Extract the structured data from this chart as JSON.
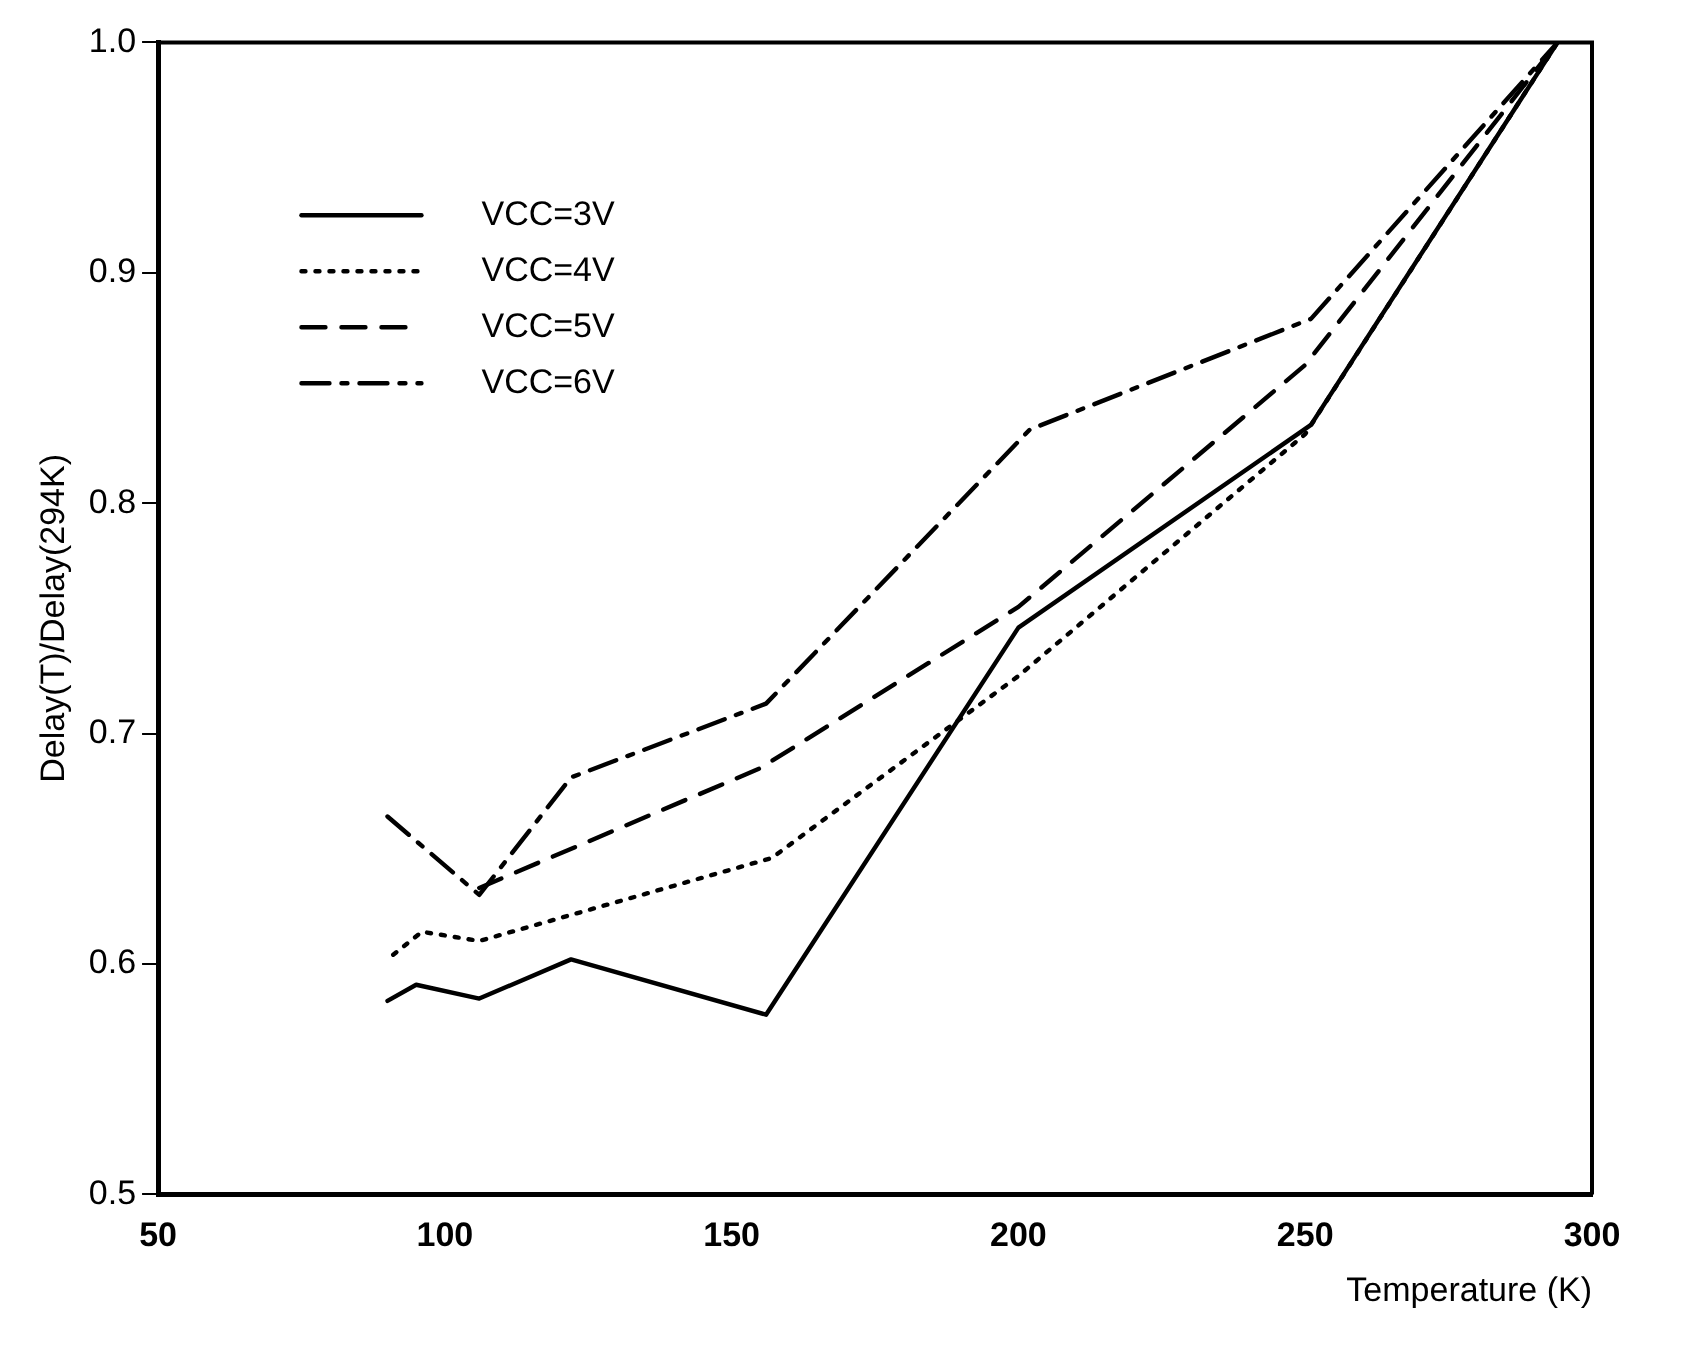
{
  "chart_data": {
    "type": "line",
    "xlabel": "Temperature (K)",
    "ylabel": "Delay(T)/Delay(294K)",
    "xlim": [
      50,
      300
    ],
    "xticks": [
      50,
      100,
      150,
      200,
      250,
      300
    ],
    "ylim": [
      0.5,
      1.0
    ],
    "yticks": [
      {
        "value": 0.5,
        "label": "0.5"
      },
      {
        "value": 0.6,
        "label": "0.6"
      },
      {
        "value": 0.7,
        "label": "0.7"
      },
      {
        "value": 0.8,
        "label": "0.8"
      },
      {
        "value": 0.9,
        "label": "0.9"
      },
      {
        "value": 1.0,
        "label": "1.0"
      }
    ],
    "grid": false,
    "legend": "top left",
    "marker": "none",
    "series": [
      {
        "name": "VCC=3V",
        "color": "#000000",
        "line_style": "solid",
        "x": [
          90,
          95,
          106,
          122,
          156,
          200,
          251,
          294
        ],
        "values": [
          0.584,
          0.591,
          0.585,
          0.602,
          0.578,
          0.746,
          0.834,
          1.0
        ]
      },
      {
        "name": "VCC=4V",
        "color": "#000000",
        "line_style": "dotted",
        "x": [
          91,
          96,
          106,
          157,
          200,
          250,
          294
        ],
        "values": [
          0.604,
          0.614,
          0.61,
          0.646,
          0.725,
          0.83,
          1.0
        ]
      },
      {
        "name": "VCC=5V",
        "color": "#000000",
        "line_style": "dashed",
        "x": [
          106,
          155,
          200,
          250,
          294
        ],
        "values": [
          0.633,
          0.685,
          0.755,
          0.86,
          1.0
        ]
      },
      {
        "name": "VCC=6V",
        "color": "#000000",
        "line_style": "dashdot",
        "x": [
          90,
          106,
          122,
          156,
          202,
          251,
          294
        ],
        "values": [
          0.664,
          0.63,
          0.681,
          0.713,
          0.832,
          0.88,
          1.0
        ]
      }
    ]
  }
}
